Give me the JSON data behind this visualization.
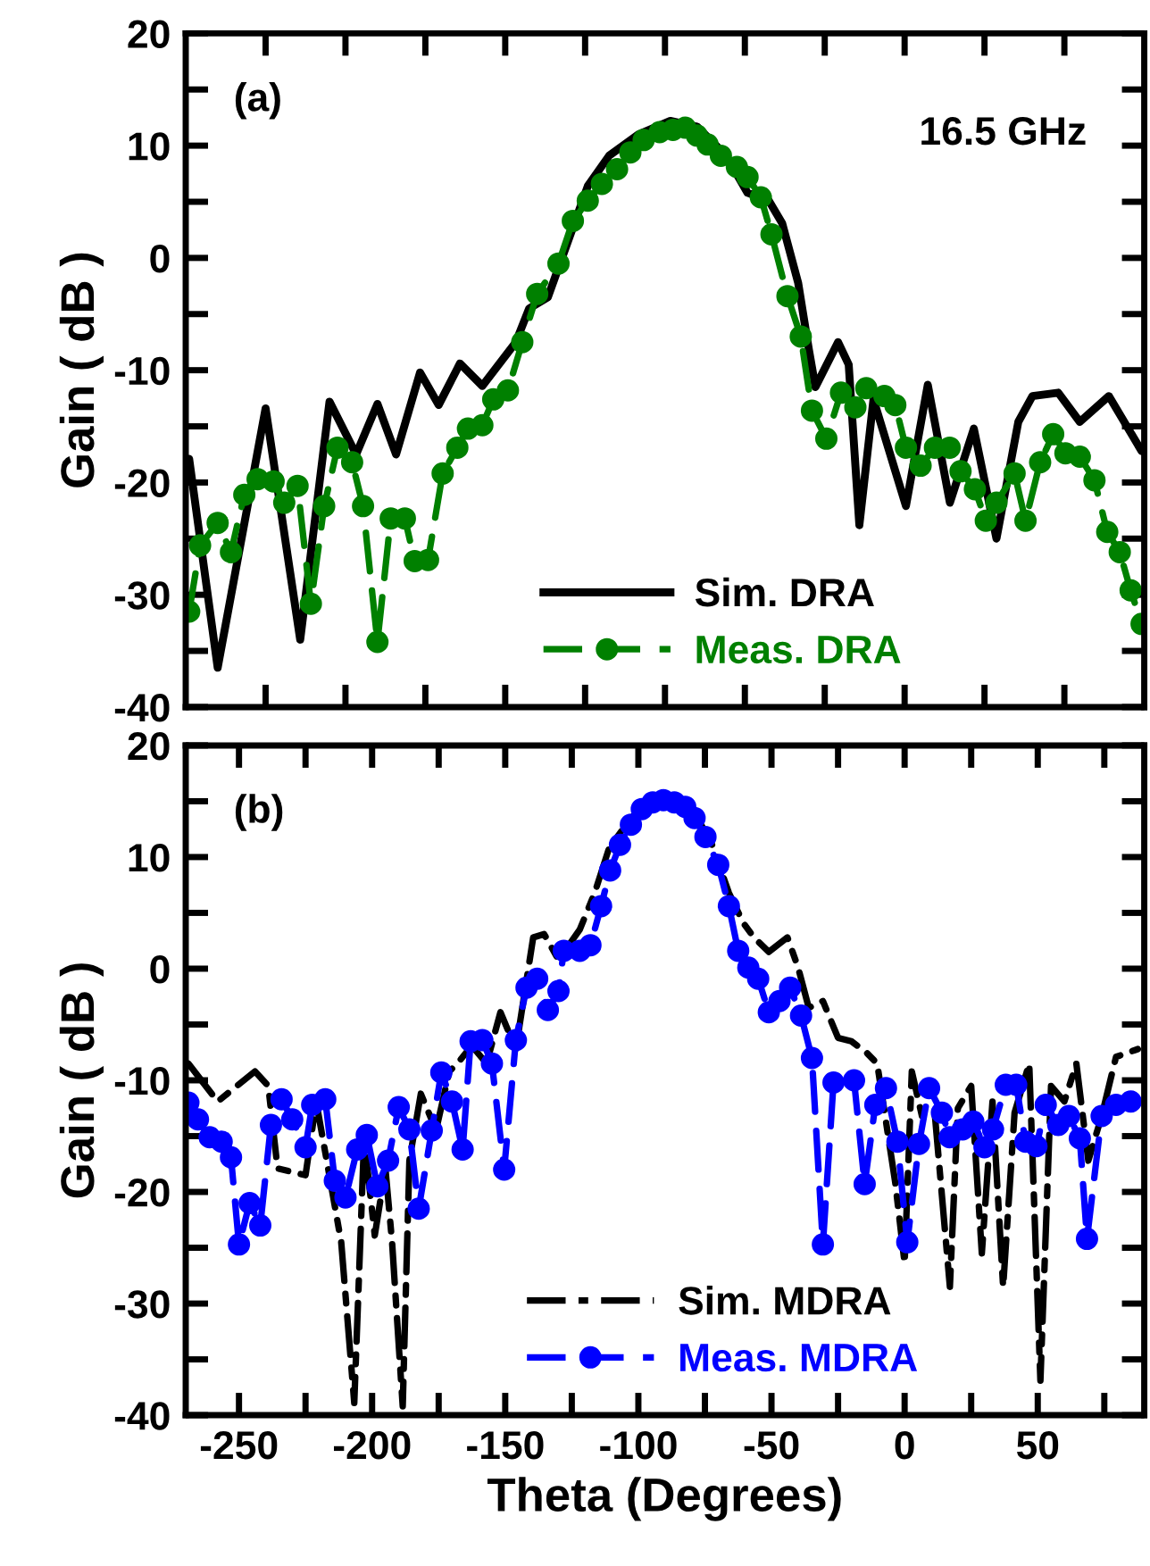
{
  "chart_data": [
    {
      "type": "line",
      "xlabel": null,
      "ylabel": "Gain ( dB )",
      "annotations": [
        "(a)",
        "16.5 GHz"
      ],
      "xlim": [
        -270,
        90
      ],
      "ylim": [
        -40,
        20
      ],
      "xticks": [
        {
          "value": -240,
          "label": null
        },
        {
          "value": -210,
          "label": null
        },
        {
          "value": -180,
          "label": null
        },
        {
          "value": -150,
          "label": null
        },
        {
          "value": -120,
          "label": null
        },
        {
          "value": -90,
          "label": null
        },
        {
          "value": -60,
          "label": null
        },
        {
          "value": -30,
          "label": null
        },
        {
          "value": 0,
          "label": null
        },
        {
          "value": 30,
          "label": null
        },
        {
          "value": 60,
          "label": null
        }
      ],
      "yticks": [
        -40,
        {
          "value": -35,
          "label": null
        },
        -30,
        {
          "value": -25,
          "label": null
        },
        -20,
        {
          "value": -15,
          "label": null
        },
        -10,
        {
          "value": -5,
          "label": null
        },
        0,
        {
          "value": 5,
          "label": null
        },
        10,
        {
          "value": 15,
          "label": null
        },
        20
      ],
      "tick_labels": "y",
      "grid": false,
      "legend": "bottom",
      "series": [
        {
          "name": "Sim. DRA",
          "color": "#000000",
          "marker": "none",
          "line_style": "solid",
          "x": [
            -268.7,
            -258,
            -240,
            -227,
            -216,
            -206,
            -198,
            -191,
            -182,
            -175,
            -167,
            -158.6,
            -146,
            -141,
            -134,
            -127,
            -119,
            -111,
            -100,
            -88,
            -78,
            -67,
            -59,
            -51,
            -46,
            -40,
            -36,
            -33.5,
            -25,
            -21,
            -17,
            -11.7,
            0.5,
            8.7,
            17,
            26,
            34.5,
            42.7,
            48,
            57.7,
            65.8,
            76.7,
            89
          ],
          "values": [
            -17.9,
            -36.5,
            -13.4,
            -34,
            -12.8,
            -17.5,
            -13,
            -17.5,
            -10.2,
            -13.1,
            -9.4,
            -11.4,
            -7.5,
            -4.5,
            -3.5,
            1.1,
            6.4,
            9.1,
            11,
            12.2,
            11.7,
            9.1,
            5.8,
            5.1,
            3.1,
            -2.2,
            -8.1,
            -11.5,
            -7.5,
            -9.5,
            -23.8,
            -12.6,
            -22.1,
            -11.3,
            -21.8,
            -15.2,
            -25,
            -14.6,
            -12.3,
            -12,
            -14.6,
            -12.3,
            -17.2
          ]
        },
        {
          "name": "Meas. DRA",
          "color": "#008000",
          "marker": "circle",
          "line_style": "dashed",
          "x": [
            -268.7,
            -264.6,
            -258,
            -253,
            -248,
            -243,
            -237,
            -233,
            -228,
            -223,
            -218,
            -213,
            -207.5,
            -203.4,
            -198,
            -193,
            -187.7,
            -184,
            -179,
            -173.5,
            -168,
            -164,
            -158.6,
            -154.5,
            -149,
            -143.6,
            -138,
            -130,
            -124.6,
            -119,
            -113.7,
            -108,
            -103,
            -98,
            -92,
            -87,
            -82.4,
            -78,
            -74,
            -69,
            -63,
            -59,
            -54,
            -50,
            -44,
            -39,
            -34.8,
            -29.4,
            -23.9,
            -18.5,
            -14.4,
            -7.6,
            -3.5,
            0.5,
            6,
            11.4,
            16.9,
            21,
            26.4,
            30.5,
            34.5,
            41.3,
            45.4,
            50.9,
            55.8,
            60.4,
            65.8,
            71.3,
            76.1,
            80.8,
            84.9,
            89
          ],
          "values": [
            -31.5,
            -25.6,
            -23.6,
            -26.2,
            -21.1,
            -19.7,
            -19.9,
            -21.8,
            -20.3,
            -30.8,
            -22.1,
            -16.9,
            -18.2,
            -22.1,
            -34.2,
            -23.2,
            -23.2,
            -27,
            -26.9,
            -19.2,
            -16.9,
            -15.2,
            -14.9,
            -12.6,
            -11.8,
            -7.5,
            -3.2,
            -0.5,
            3.3,
            5.1,
            6.6,
            7.9,
            9.4,
            10.5,
            11.2,
            11.4,
            11.6,
            10.9,
            10.1,
            9.1,
            8.1,
            7.2,
            5.4,
            2.1,
            -3.4,
            -7,
            -13.6,
            -16.1,
            -12,
            -13.3,
            -11.6,
            -12.3,
            -13.1,
            -16.9,
            -18.5,
            -16.9,
            -16.9,
            -19,
            -20.6,
            -23.4,
            -21.8,
            -19.2,
            -23.4,
            -18.2,
            -15.7,
            -17.4,
            -17.7,
            -19.8,
            -24.4,
            -26.2,
            -29.6,
            -32.6
          ]
        }
      ]
    },
    {
      "type": "line",
      "xlabel": "Theta (Degrees)",
      "ylabel": "Gain ( dB )",
      "annotations": [
        "(b)"
      ],
      "xlim": [
        -270,
        90
      ],
      "ylim": [
        -40,
        20
      ],
      "xticks": [
        -250,
        {
          "value": -225,
          "label": null
        },
        -200,
        {
          "value": -175,
          "label": null
        },
        -150,
        {
          "value": -125,
          "label": null
        },
        -100,
        {
          "value": -75,
          "label": null
        },
        -50,
        {
          "value": -25,
          "label": null
        },
        0,
        {
          "value": 25,
          "label": null
        },
        50,
        {
          "value": 75,
          "label": null
        }
      ],
      "yticks": [
        -40,
        {
          "value": -35,
          "label": null
        },
        -30,
        {
          "value": -25,
          "label": null
        },
        -20,
        {
          "value": -15,
          "label": null
        },
        -10,
        {
          "value": -5,
          "label": null
        },
        0,
        {
          "value": 5,
          "label": null
        },
        10,
        {
          "value": 15,
          "label": null
        },
        20
      ],
      "grid": false,
      "legend": "bottom",
      "series": [
        {
          "name": "Sim. MDRA",
          "color": "#000000",
          "marker": "none",
          "line_style": "dashdot",
          "x": [
            -269,
            -258,
            -244,
            -239,
            -235.5,
            -225,
            -221,
            -211.6,
            -206.7,
            -203,
            -199,
            -195,
            -192.5,
            -188.5,
            -186,
            -181.7,
            -176,
            -171,
            -168,
            -162.6,
            -157,
            -151.8,
            -146,
            -139.5,
            -135.4,
            -130,
            -122,
            -116.4,
            -111,
            -102.8,
            -94.6,
            -86.5,
            -78,
            -72.9,
            -66,
            -60.6,
            -56.6,
            -51,
            -44,
            -40,
            -36,
            -30.7,
            -25,
            -20,
            -14.4,
            -10.3,
            -3.5,
            0,
            2.7,
            6.5,
            11.4,
            17,
            20,
            25,
            29,
            33,
            37,
            41.3,
            46.8,
            51,
            55,
            60,
            64.5,
            69,
            74,
            79.4,
            87.6
          ],
          "values": [
            -8.5,
            -11.9,
            -9.2,
            -10.5,
            -17.9,
            -18.5,
            -11.9,
            -24.5,
            -38.9,
            -15.2,
            -23.9,
            -17.9,
            -24.5,
            -39.2,
            -17.2,
            -11.2,
            -14.5,
            -9.2,
            -8.5,
            -6.9,
            -8.5,
            -3.9,
            -7.2,
            2.8,
            3.1,
            0.8,
            3.5,
            6.8,
            10.8,
            13.5,
            15.1,
            15.1,
            13.5,
            11.5,
            6.8,
            4.1,
            2.8,
            1.5,
            2.8,
            0.1,
            -3.5,
            -2.9,
            -6.2,
            -6.5,
            -7.5,
            -8.5,
            -19.2,
            -26.4,
            -9.2,
            -13.2,
            -13.2,
            -28.5,
            -12.5,
            -10.5,
            -25.5,
            -11.9,
            -28.5,
            -12.9,
            -8.5,
            -36.9,
            -10.5,
            -11.9,
            -8.5,
            -17.2,
            -13.2,
            -7.9,
            -7.2
          ]
        },
        {
          "name": "Meas. MDRA",
          "color": "#0000ff",
          "marker": "circle",
          "line_style": "dashed",
          "x": [
            -269,
            -265.4,
            -261,
            -256.5,
            -253,
            -250,
            -246,
            -242,
            -238,
            -234,
            -230,
            -225,
            -222.5,
            -217.6,
            -214,
            -210,
            -205.6,
            -202,
            -198,
            -194,
            -190,
            -186,
            -182.5,
            -177.6,
            -174,
            -170,
            -166,
            -163,
            -158.6,
            -155,
            -150.4,
            -146,
            -142,
            -138,
            -134,
            -130,
            -128,
            -122,
            -118,
            -114,
            -110.6,
            -106.9,
            -102.8,
            -98.7,
            -94.6,
            -90.6,
            -86.5,
            -82.4,
            -78.9,
            -74.8,
            -70,
            -66,
            -62.5,
            -58.7,
            -55,
            -51,
            -47,
            -43,
            -38.9,
            -34.8,
            -30.7,
            -26.7,
            -19,
            -15,
            -11,
            -7,
            -2.7,
            1,
            5.4,
            9.2,
            14,
            16.9,
            21.8,
            25.8,
            30,
            33.2,
            38,
            41.9,
            45.4,
            49.5,
            53,
            57.7,
            61.7,
            65.8,
            68.5,
            74,
            79.4,
            84.9
          ],
          "values": [
            -12,
            -13.5,
            -15.1,
            -15.5,
            -16.9,
            -24.7,
            -21,
            -23,
            -14,
            -11.7,
            -13.5,
            -16,
            -12.2,
            -11.7,
            -19,
            -20.5,
            -16.2,
            -14.9,
            -19.5,
            -17.2,
            -12.4,
            -14.4,
            -21.5,
            -14.5,
            -9.3,
            -11.9,
            -16.2,
            -6.5,
            -6.4,
            -8.5,
            -18,
            -6.4,
            -1.7,
            -0.9,
            -3.7,
            -2,
            1.6,
            1.6,
            2.1,
            5.6,
            8.8,
            11.1,
            12.9,
            14.3,
            14.9,
            15.1,
            14.9,
            14.5,
            13.5,
            11.8,
            9.3,
            5.6,
            1.6,
            0.1,
            -0.9,
            -3.9,
            -2.9,
            -1.7,
            -4.2,
            -8,
            -24.7,
            -10.2,
            -10,
            -19.3,
            -12.2,
            -10.7,
            -15.5,
            -24.5,
            -15.7,
            -10.7,
            -12.9,
            -15.1,
            -14.4,
            -13.7,
            -16,
            -14.4,
            -10.4,
            -10.4,
            -15.5,
            -15.9,
            -12.2,
            -14,
            -13.2,
            -15.2,
            -24.2,
            -13.2,
            -12.2,
            -11.9
          ]
        }
      ]
    }
  ]
}
